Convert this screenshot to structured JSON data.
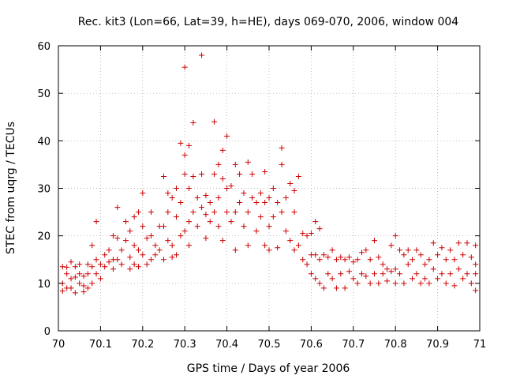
{
  "chart_data": {
    "type": "scatter",
    "title": "Rec. kit3 (Lon=66, Lat=39, h=HE), days 069-070, 2006, window 004",
    "xlabel": "GPS time / Days of year 2006",
    "ylabel": "STEC from uqrg / TECUs",
    "xlim": [
      70,
      71
    ],
    "ylim": [
      0,
      60
    ],
    "x_ticks": [
      "70",
      "70.1",
      "70.2",
      "70.3",
      "70.4",
      "70.5",
      "70.6",
      "70.7",
      "70.8",
      "70.9",
      "71"
    ],
    "y_ticks": [
      "0",
      "10",
      "20",
      "30",
      "40",
      "50",
      "60"
    ],
    "grid": true,
    "marker": "+",
    "color": "#cc0000",
    "points": [
      [
        70.01,
        13.5
      ],
      [
        70.01,
        10.0
      ],
      [
        70.01,
        8.4
      ],
      [
        70.02,
        13.4
      ],
      [
        70.02,
        12.0
      ],
      [
        70.02,
        9.0
      ],
      [
        70.03,
        14.5
      ],
      [
        70.03,
        11.0
      ],
      [
        70.03,
        9.0
      ],
      [
        70.04,
        13.5
      ],
      [
        70.04,
        11.3
      ],
      [
        70.04,
        8.0
      ],
      [
        70.05,
        14.0
      ],
      [
        70.05,
        12.0
      ],
      [
        70.05,
        10.0
      ],
      [
        70.06,
        11.5
      ],
      [
        70.06,
        9.5
      ],
      [
        70.06,
        8.2
      ],
      [
        70.07,
        14.0
      ],
      [
        70.07,
        12.0
      ],
      [
        70.07,
        9.0
      ],
      [
        70.08,
        13.5
      ],
      [
        70.08,
        10.0
      ],
      [
        70.08,
        18.0
      ],
      [
        70.09,
        15.0
      ],
      [
        70.09,
        12.0
      ],
      [
        70.09,
        23.0
      ],
      [
        70.1,
        14.0
      ],
      [
        70.1,
        11.0
      ],
      [
        70.11,
        16.0
      ],
      [
        70.11,
        13.5
      ],
      [
        70.12,
        17.0
      ],
      [
        70.12,
        14.5
      ],
      [
        70.13,
        20.0
      ],
      [
        70.13,
        15.0
      ],
      [
        70.13,
        13.0
      ],
      [
        70.14,
        26.0
      ],
      [
        70.14,
        19.5
      ],
      [
        70.14,
        15.0
      ],
      [
        70.15,
        17.0
      ],
      [
        70.15,
        14.0
      ],
      [
        70.16,
        23.0
      ],
      [
        70.16,
        19.0
      ],
      [
        70.17,
        21.0
      ],
      [
        70.17,
        15.5
      ],
      [
        70.17,
        13.0
      ],
      [
        70.18,
        24.0
      ],
      [
        70.18,
        18.0
      ],
      [
        70.18,
        14.0
      ],
      [
        70.19,
        25.0
      ],
      [
        70.19,
        17.0
      ],
      [
        70.19,
        13.5
      ],
      [
        70.2,
        29.0
      ],
      [
        70.2,
        22.0
      ],
      [
        70.2,
        16.0
      ],
      [
        70.21,
        19.5
      ],
      [
        70.21,
        14.0
      ],
      [
        70.22,
        25.0
      ],
      [
        70.22,
        20.0
      ],
      [
        70.22,
        15.0
      ],
      [
        70.23,
        18.0
      ],
      [
        70.23,
        16.0
      ],
      [
        70.24,
        22.0
      ],
      [
        70.24,
        17.0
      ],
      [
        70.25,
        32.5
      ],
      [
        70.25,
        22.0
      ],
      [
        70.25,
        15.0
      ],
      [
        70.26,
        29.0
      ],
      [
        70.26,
        25.0
      ],
      [
        70.26,
        19.0
      ],
      [
        70.27,
        28.0
      ],
      [
        70.27,
        18.0
      ],
      [
        70.27,
        15.5
      ],
      [
        70.28,
        30.0
      ],
      [
        70.28,
        24.0
      ],
      [
        70.28,
        16.0
      ],
      [
        70.29,
        39.5
      ],
      [
        70.29,
        27.0
      ],
      [
        70.29,
        20.0
      ],
      [
        70.3,
        55.5
      ],
      [
        70.3,
        37.0
      ],
      [
        70.3,
        33.0
      ],
      [
        70.3,
        21.0
      ],
      [
        70.31,
        39.0
      ],
      [
        70.31,
        30.0
      ],
      [
        70.31,
        23.0
      ],
      [
        70.31,
        18.0
      ],
      [
        70.32,
        43.8
      ],
      [
        70.32,
        32.5
      ],
      [
        70.32,
        25.0
      ],
      [
        70.33,
        28.0
      ],
      [
        70.33,
        22.0
      ],
      [
        70.34,
        58.0
      ],
      [
        70.34,
        33.0
      ],
      [
        70.34,
        26.0
      ],
      [
        70.35,
        28.5
      ],
      [
        70.35,
        24.5
      ],
      [
        70.35,
        19.5
      ],
      [
        70.36,
        27.0
      ],
      [
        70.36,
        23.0
      ],
      [
        70.37,
        44.0
      ],
      [
        70.37,
        33.0
      ],
      [
        70.37,
        25.0
      ],
      [
        70.38,
        35.0
      ],
      [
        70.38,
        28.0
      ],
      [
        70.38,
        22.0
      ],
      [
        70.39,
        38.0
      ],
      [
        70.39,
        32.0
      ],
      [
        70.39,
        19.0
      ],
      [
        70.4,
        41.0
      ],
      [
        70.4,
        30.0
      ],
      [
        70.4,
        25.0
      ],
      [
        70.41,
        30.5
      ],
      [
        70.41,
        23.0
      ],
      [
        70.42,
        35.0
      ],
      [
        70.42,
        25.0
      ],
      [
        70.42,
        17.0
      ],
      [
        70.43,
        33.0
      ],
      [
        70.43,
        27.0
      ],
      [
        70.44,
        29.0
      ],
      [
        70.44,
        22.0
      ],
      [
        70.45,
        35.5
      ],
      [
        70.45,
        25.0
      ],
      [
        70.45,
        18.0
      ],
      [
        70.46,
        33.0
      ],
      [
        70.46,
        28.0
      ],
      [
        70.47,
        27.0
      ],
      [
        70.47,
        21.0
      ],
      [
        70.48,
        29.0
      ],
      [
        70.48,
        24.0
      ],
      [
        70.49,
        33.5
      ],
      [
        70.49,
        27.0
      ],
      [
        70.49,
        18.0
      ],
      [
        70.5,
        28.0
      ],
      [
        70.5,
        22.0
      ],
      [
        70.5,
        17.0
      ],
      [
        70.51,
        30.0
      ],
      [
        70.51,
        24.0
      ],
      [
        70.52,
        27.0
      ],
      [
        70.52,
        17.5
      ],
      [
        70.53,
        38.5
      ],
      [
        70.53,
        35.0
      ],
      [
        70.53,
        25.0
      ],
      [
        70.54,
        28.0
      ],
      [
        70.54,
        21.0
      ],
      [
        70.55,
        31.0
      ],
      [
        70.55,
        19.0
      ],
      [
        70.56,
        29.5
      ],
      [
        70.56,
        25.0
      ],
      [
        70.56,
        17.0
      ],
      [
        70.57,
        32.5
      ],
      [
        70.57,
        18.0
      ],
      [
        70.58,
        20.5
      ],
      [
        70.58,
        15.0
      ],
      [
        70.59,
        20.0
      ],
      [
        70.59,
        14.0
      ],
      [
        70.6,
        20.5
      ],
      [
        70.6,
        16.0
      ],
      [
        70.6,
        12.0
      ],
      [
        70.61,
        23.0
      ],
      [
        70.61,
        16.0
      ],
      [
        70.61,
        11.0
      ],
      [
        70.62,
        21.5
      ],
      [
        70.62,
        15.0
      ],
      [
        70.62,
        10.0
      ],
      [
        70.63,
        16.0
      ],
      [
        70.63,
        9.0
      ],
      [
        70.64,
        15.5
      ],
      [
        70.64,
        12.0
      ],
      [
        70.65,
        17.0
      ],
      [
        70.65,
        11.0
      ],
      [
        70.66,
        15.0
      ],
      [
        70.66,
        9.0
      ],
      [
        70.67,
        15.5
      ],
      [
        70.67,
        12.0
      ],
      [
        70.68,
        15.0
      ],
      [
        70.68,
        9.0
      ],
      [
        70.69,
        15.5
      ],
      [
        70.69,
        12.5
      ],
      [
        70.7,
        14.5
      ],
      [
        70.7,
        11.0
      ],
      [
        70.71,
        15.0
      ],
      [
        70.71,
        10.0
      ],
      [
        70.72,
        16.5
      ],
      [
        70.72,
        12.0
      ],
      [
        70.73,
        17.0
      ],
      [
        70.73,
        11.5
      ],
      [
        70.74,
        15.0
      ],
      [
        70.74,
        10.0
      ],
      [
        70.75,
        19.0
      ],
      [
        70.75,
        12.0
      ],
      [
        70.76,
        15.5
      ],
      [
        70.76,
        10.0
      ],
      [
        70.77,
        14.0
      ],
      [
        70.77,
        12.0
      ],
      [
        70.78,
        13.0
      ],
      [
        70.78,
        10.5
      ],
      [
        70.79,
        18.0
      ],
      [
        70.79,
        12.5
      ],
      [
        70.8,
        20.0
      ],
      [
        70.8,
        13.0
      ],
      [
        70.8,
        10.0
      ],
      [
        70.81,
        17.0
      ],
      [
        70.81,
        12.0
      ],
      [
        70.82,
        16.0
      ],
      [
        70.82,
        10.0
      ],
      [
        70.83,
        17.0
      ],
      [
        70.83,
        14.0
      ],
      [
        70.84,
        15.0
      ],
      [
        70.84,
        11.0
      ],
      [
        70.85,
        17.0
      ],
      [
        70.85,
        12.0
      ],
      [
        70.86,
        16.0
      ],
      [
        70.86,
        10.0
      ],
      [
        70.87,
        14.0
      ],
      [
        70.87,
        11.0
      ],
      [
        70.88,
        15.0
      ],
      [
        70.88,
        10.0
      ],
      [
        70.89,
        18.5
      ],
      [
        70.89,
        13.0
      ],
      [
        70.9,
        16.0
      ],
      [
        70.9,
        11.0
      ],
      [
        70.91,
        17.5
      ],
      [
        70.91,
        12.0
      ],
      [
        70.92,
        15.0
      ],
      [
        70.92,
        10.0
      ],
      [
        70.93,
        17.0
      ],
      [
        70.93,
        12.0
      ],
      [
        70.94,
        15.0
      ],
      [
        70.94,
        9.5
      ],
      [
        70.95,
        18.5
      ],
      [
        70.95,
        13.0
      ],
      [
        70.96,
        16.0
      ],
      [
        70.96,
        11.0
      ],
      [
        70.97,
        18.5
      ],
      [
        70.97,
        12.0
      ],
      [
        70.98,
        15.5
      ],
      [
        70.98,
        10.0
      ],
      [
        70.99,
        18.0
      ],
      [
        70.99,
        14.0
      ],
      [
        70.99,
        12.0
      ],
      [
        70.99,
        8.5
      ]
    ]
  }
}
